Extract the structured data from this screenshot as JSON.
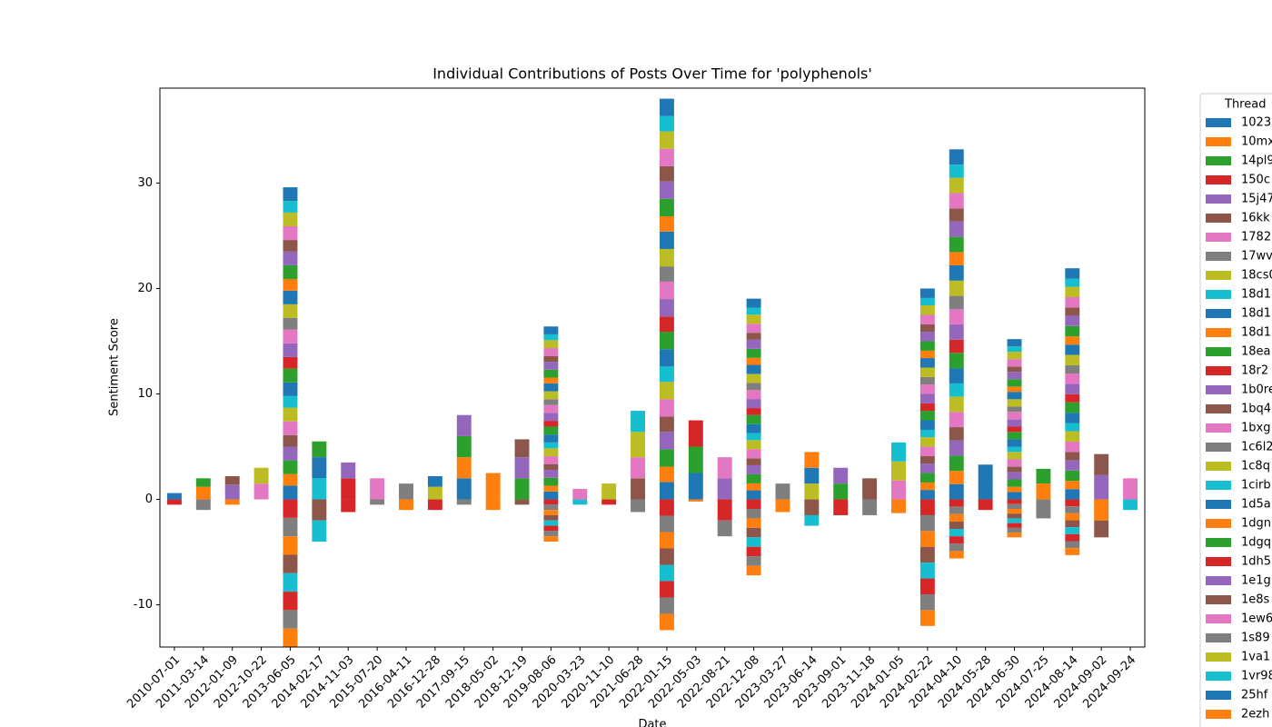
{
  "chart_data": {
    "type": "bar",
    "stacked": true,
    "title": "Individual Contributions of Posts Over Time for 'polyphenols'",
    "xlabel": "Date",
    "ylabel": "Sentiment Score",
    "legend_title": "Thread",
    "ylim": [
      -14,
      39
    ],
    "yticks": [
      -10,
      0,
      10,
      20,
      30
    ],
    "categories": [
      "2010-07-01",
      "2011-03-14",
      "2012-01-09",
      "2012-10-22",
      "2013-06-05",
      "2014-02-17",
      "2014-11-03",
      "2015-07-20",
      "2016-04-11",
      "2016-12-28",
      "2017-09-15",
      "2018-05-02",
      "2018-12-19",
      "2019-08-06",
      "2020-03-23",
      "2020-11-10",
      "2021-06-28",
      "2022-01-15",
      "2022-05-03",
      "2022-08-21",
      "2022-12-08",
      "2023-03-27",
      "2023-06-14",
      "2023-09-01",
      "2023-11-18",
      "2024-01-05",
      "2024-02-22",
      "2024-04-10",
      "2024-05-28",
      "2024-06-30",
      "2024-07-25",
      "2024-08-14",
      "2024-09-02",
      "2024-09-24"
    ],
    "series": [
      {
        "name": "1023",
        "color": "#1f77b4",
        "values": [
          0.6,
          0,
          0,
          0,
          1.3,
          0,
          0,
          0,
          0,
          0,
          2,
          0,
          0,
          0.75,
          0,
          0,
          0,
          1.65,
          0,
          0,
          0.86,
          0,
          0,
          0,
          0,
          0,
          0.9,
          1.45,
          1.6,
          0.7,
          0,
          0.98,
          0,
          0
        ]
      },
      {
        "name": "10mx",
        "color": "#ff7f0e",
        "values": [
          0,
          1.2,
          0,
          0,
          1.1,
          0,
          0,
          0,
          0,
          0,
          2,
          0,
          0,
          0.55,
          0,
          0,
          0,
          1.45,
          0,
          0,
          0.66,
          0,
          0,
          0,
          0,
          0,
          0.7,
          1.25,
          0,
          0.5,
          1.5,
          0.78,
          0,
          0
        ]
      },
      {
        "name": "14pl9",
        "color": "#2ca02c",
        "values": [
          0,
          0.8,
          0,
          0,
          1.3,
          0,
          0,
          0,
          0,
          0,
          2,
          0,
          0,
          0.75,
          0,
          0,
          0,
          1.65,
          0,
          0,
          0.86,
          0,
          0,
          0,
          0,
          0,
          0.9,
          1.45,
          0,
          0.7,
          1.4,
          0.98,
          0,
          0
        ]
      },
      {
        "name": "150c",
        "color": "#d62728",
        "values": [
          -0.5,
          0,
          0,
          0,
          -1.75,
          0,
          0,
          0,
          0,
          -1,
          0,
          0,
          0,
          -0.5,
          0,
          0,
          0,
          -1.55,
          0,
          -2,
          -0.9,
          0,
          0,
          0,
          0,
          0,
          -1.5,
          -0.7,
          -1,
          -0.45,
          0,
          -0.66,
          0,
          0
        ]
      },
      {
        "name": "15j47",
        "color": "#9467bd",
        "values": [
          0,
          0,
          1.4,
          0,
          1.3,
          0,
          0,
          0,
          0,
          0,
          2,
          0,
          0,
          0.75,
          0,
          0,
          0,
          1.65,
          0,
          0,
          0.86,
          0,
          0,
          0,
          0,
          0,
          0.9,
          1.45,
          0,
          0.7,
          0,
          0.98,
          2.3,
          0
        ]
      },
      {
        "name": "16kk",
        "color": "#8c564b",
        "values": [
          0,
          0,
          0.8,
          0,
          1.1,
          0,
          0,
          0,
          0,
          0,
          0,
          0,
          0,
          0.55,
          0,
          0,
          2,
          1.45,
          0,
          0,
          0.66,
          0,
          0,
          0,
          0,
          0,
          0.7,
          1.25,
          0,
          0.5,
          0,
          0.78,
          2,
          0
        ]
      },
      {
        "name": "1782",
        "color": "#e377c2",
        "values": [
          0,
          0,
          0,
          1.5,
          1.3,
          0,
          0,
          0,
          0,
          0,
          0,
          0,
          0,
          0.75,
          0,
          0,
          2,
          1.65,
          0,
          0,
          0.86,
          0,
          0,
          0,
          0,
          0,
          0.9,
          1.45,
          0,
          0.7,
          0,
          0.98,
          0,
          2
        ]
      },
      {
        "name": "17wv",
        "color": "#7f7f7f",
        "values": [
          0,
          -1,
          0,
          0,
          -1.75,
          0,
          0,
          0,
          0,
          0,
          -0.5,
          0,
          0,
          -0.5,
          0,
          0,
          0,
          -1.55,
          0,
          -1.5,
          -0.9,
          0,
          0,
          0,
          0,
          0,
          -1.5,
          -0.7,
          0,
          -0.45,
          -1.8,
          -0.66,
          0,
          0
        ]
      },
      {
        "name": "18cs0",
        "color": "#bcbd22",
        "values": [
          0,
          0,
          0,
          1.5,
          1.3,
          0,
          0,
          0,
          0,
          0,
          0,
          0,
          0,
          0.75,
          0,
          0,
          2.4,
          1.65,
          0,
          0,
          0.86,
          0,
          0,
          0,
          0,
          0,
          0.9,
          1.45,
          0,
          0.7,
          0,
          0.98,
          0,
          0
        ]
      },
      {
        "name": "18d1",
        "color": "#17becf",
        "values": [
          0,
          0,
          0,
          0,
          1.1,
          2,
          0,
          0,
          0,
          0,
          0,
          0,
          0,
          0.55,
          0,
          0,
          2,
          1.45,
          0,
          0,
          0.66,
          0,
          0,
          0,
          0,
          0,
          0.7,
          1.25,
          0,
          0.5,
          0,
          0.78,
          0,
          0
        ]
      },
      {
        "name": "18d1",
        "color": "#1f77b4",
        "values": [
          0,
          0,
          0,
          0,
          1.3,
          2,
          0,
          0,
          0,
          0,
          0,
          0,
          0,
          0.75,
          0,
          0,
          0,
          1.65,
          2.5,
          0,
          0.86,
          0,
          0,
          0,
          0,
          0,
          0.9,
          1.45,
          0,
          0.7,
          0,
          0.98,
          0,
          0
        ]
      },
      {
        "name": "18d1",
        "color": "#ff7f0e",
        "values": [
          0,
          0,
          -0.5,
          0,
          -1.75,
          0,
          0,
          0,
          0,
          0,
          0,
          -1,
          0,
          -0.5,
          0,
          0,
          0,
          -1.55,
          0,
          0,
          -0.9,
          -1.2,
          0,
          0,
          0,
          0,
          -1.5,
          -0.7,
          0,
          -0.45,
          0,
          -0.66,
          -2,
          0
        ]
      },
      {
        "name": "18ea",
        "color": "#2ca02c",
        "values": [
          0,
          0,
          0,
          0,
          1.3,
          1.5,
          0,
          0,
          0,
          0,
          0,
          0,
          0,
          0.75,
          0,
          0,
          0,
          1.65,
          2.5,
          0,
          0.86,
          0,
          0,
          0,
          0,
          0,
          0.9,
          1.45,
          0,
          0.7,
          0,
          0.98,
          0,
          0
        ]
      },
      {
        "name": "18r2",
        "color": "#d62728",
        "values": [
          0,
          0,
          0,
          0,
          1.1,
          0,
          2,
          0,
          0,
          0,
          0,
          0,
          0,
          0.55,
          0,
          0,
          0,
          1.45,
          2.5,
          0,
          0.66,
          0,
          0,
          0,
          0,
          0,
          0.7,
          1.25,
          0,
          0.5,
          0,
          0.78,
          0,
          0
        ]
      },
      {
        "name": "1b0re",
        "color": "#9467bd",
        "values": [
          0,
          0,
          0,
          0,
          1.3,
          0,
          1.5,
          0,
          0,
          0,
          0,
          0,
          0,
          0.75,
          0,
          0,
          0,
          1.65,
          0,
          2,
          0.86,
          0,
          0,
          0,
          0,
          0,
          0.9,
          1.45,
          0,
          0.7,
          0,
          0.98,
          0,
          0
        ]
      },
      {
        "name": "1bq4",
        "color": "#8c564b",
        "values": [
          0,
          0,
          0,
          0,
          -1.75,
          -2,
          0,
          0,
          0,
          0,
          0,
          0,
          -0.5,
          -0.5,
          0,
          0,
          0,
          -1.55,
          0,
          0,
          -0.9,
          0,
          -1.5,
          0,
          0,
          0,
          -1.5,
          -0.7,
          0,
          -0.45,
          0,
          -0.66,
          -1.6,
          0
        ]
      },
      {
        "name": "1bxg",
        "color": "#e377c2",
        "values": [
          0,
          0,
          0,
          0,
          1.3,
          0,
          0,
          2,
          0,
          0,
          0,
          0,
          0,
          0.75,
          0,
          0,
          0,
          1.65,
          0,
          2,
          0.86,
          0,
          0,
          0,
          0,
          0,
          0.9,
          1.45,
          0,
          0.7,
          0,
          0.98,
          0,
          0
        ]
      },
      {
        "name": "1c6l2",
        "color": "#7f7f7f",
        "values": [
          0,
          0,
          0,
          0,
          1.1,
          0,
          0,
          0,
          1.5,
          0,
          0,
          0,
          0,
          0.55,
          0,
          0,
          0,
          1.45,
          0,
          0,
          0.66,
          1.5,
          0,
          0,
          0,
          0,
          0.7,
          1.25,
          0,
          0.5,
          0,
          0.78,
          0,
          0
        ]
      },
      {
        "name": "1c8q",
        "color": "#bcbd22",
        "values": [
          0,
          0,
          0,
          0,
          1.3,
          0,
          0,
          0,
          0,
          1.2,
          0,
          0,
          0,
          0.75,
          0,
          0,
          0,
          1.65,
          0,
          0,
          0.86,
          0,
          1.5,
          0,
          0,
          0,
          0.9,
          1.45,
          0,
          0.7,
          0,
          0.98,
          0,
          0
        ]
      },
      {
        "name": "1cirb",
        "color": "#17becf",
        "values": [
          0,
          0,
          0,
          0,
          -1.75,
          -2,
          0,
          0,
          0,
          0,
          0,
          0,
          0,
          -0.5,
          -0.5,
          0,
          0,
          -1.55,
          0,
          0,
          -0.9,
          0,
          -1,
          0,
          0,
          0,
          -1.5,
          -0.7,
          0,
          -0.45,
          0,
          -0.66,
          0,
          -1
        ]
      },
      {
        "name": "1d5a",
        "color": "#1f77b4",
        "values": [
          0,
          0,
          0,
          0,
          1.3,
          0,
          0,
          0,
          0,
          1,
          0,
          0,
          0,
          0.75,
          0,
          0,
          0,
          1.65,
          0,
          0,
          0.86,
          0,
          1.5,
          0,
          0,
          0,
          0.9,
          1.45,
          0,
          0.7,
          0,
          0.98,
          0,
          0
        ]
      },
      {
        "name": "1dgn",
        "color": "#ff7f0e",
        "values": [
          0,
          0,
          0,
          0,
          1.1,
          0,
          0,
          0,
          0,
          0,
          0,
          2.5,
          0,
          0.55,
          0,
          0,
          0,
          1.45,
          0,
          0,
          0.66,
          0,
          1.5,
          0,
          0,
          0,
          0.7,
          1.25,
          0,
          0.5,
          0,
          0.78,
          0,
          0
        ]
      },
      {
        "name": "1dgq",
        "color": "#2ca02c",
        "values": [
          0,
          0,
          0,
          0,
          1.3,
          0,
          0,
          0,
          0,
          0,
          0,
          0,
          2,
          0.75,
          0,
          0,
          0,
          1.65,
          0,
          0,
          0.86,
          0,
          0,
          1.5,
          0,
          0,
          0.9,
          1.45,
          0,
          0.7,
          0,
          0.98,
          0,
          0
        ]
      },
      {
        "name": "1dh5",
        "color": "#d62728",
        "values": [
          0,
          0,
          0,
          0,
          -1.75,
          0,
          -1.2,
          0,
          0,
          0,
          0,
          0,
          0,
          -0.5,
          0,
          -0.5,
          0,
          -1.55,
          0,
          0,
          -0.9,
          0,
          0,
          -1.5,
          0,
          0,
          -1.5,
          -0.7,
          0,
          -0.45,
          0,
          -0.66,
          0,
          0
        ]
      },
      {
        "name": "1e1g",
        "color": "#9467bd",
        "values": [
          0,
          0,
          0,
          0,
          1.3,
          0,
          0,
          0,
          0,
          0,
          0,
          0,
          2,
          0.75,
          0,
          0,
          0,
          1.65,
          0,
          0,
          0.86,
          0,
          0,
          1.5,
          0,
          0,
          0.9,
          1.45,
          0,
          0.7,
          0,
          0.98,
          0,
          0
        ]
      },
      {
        "name": "1e8s",
        "color": "#8c564b",
        "values": [
          0,
          0,
          0,
          0,
          1.1,
          0,
          0,
          0,
          0,
          0,
          0,
          0,
          1.7,
          0.55,
          0,
          0,
          0,
          1.45,
          0,
          0,
          0.66,
          0,
          0,
          0,
          2,
          0,
          0.7,
          1.25,
          0,
          0.5,
          0,
          0.78,
          0,
          0
        ]
      },
      {
        "name": "1ew6",
        "color": "#e377c2",
        "values": [
          0,
          0,
          0,
          0,
          1.3,
          0,
          0,
          0,
          0,
          0,
          0,
          0,
          0,
          0.75,
          1,
          0,
          0,
          1.65,
          0,
          0,
          0.86,
          0,
          0,
          0,
          0,
          1.8,
          0.9,
          1.45,
          0,
          0.7,
          0,
          0.98,
          0,
          0
        ]
      },
      {
        "name": "1s89",
        "color": "#7f7f7f",
        "values": [
          0,
          0,
          0,
          0,
          -1.75,
          0,
          0,
          -0.5,
          0,
          0,
          0,
          0,
          0,
          -0.5,
          0,
          0,
          -1.2,
          -1.55,
          0,
          0,
          -0.9,
          0,
          0,
          0,
          -1.5,
          0,
          -1.5,
          -0.7,
          0,
          -0.45,
          0,
          -0.66,
          0,
          0
        ]
      },
      {
        "name": "1va1",
        "color": "#bcbd22",
        "values": [
          0,
          0,
          0,
          0,
          1.3,
          0,
          0,
          0,
          0,
          0,
          0,
          0,
          0,
          0.75,
          0,
          1.5,
          0,
          1.65,
          0,
          0,
          0.86,
          0,
          0,
          0,
          0,
          1.8,
          0.9,
          1.45,
          0,
          0.7,
          0,
          0.98,
          0,
          0
        ]
      },
      {
        "name": "1vr98",
        "color": "#17becf",
        "values": [
          0,
          0,
          0,
          0,
          1.1,
          0,
          0,
          0,
          0,
          0,
          0,
          0,
          0,
          0.55,
          0,
          0,
          0,
          1.45,
          0,
          0,
          0.66,
          0,
          0,
          0,
          0,
          1.8,
          0.7,
          1.25,
          0,
          0.5,
          0,
          0.78,
          0,
          0
        ]
      },
      {
        "name": "25hf",
        "color": "#1f77b4",
        "values": [
          0,
          0,
          0,
          0,
          1.3,
          0,
          0,
          0,
          0,
          0,
          0,
          0,
          0,
          0.75,
          0,
          0,
          0,
          1.65,
          0,
          0,
          0.86,
          0,
          0,
          0,
          0,
          0,
          0.9,
          1.45,
          1.7,
          0.7,
          0,
          0.98,
          0,
          0
        ]
      },
      {
        "name": "2ezh",
        "color": "#ff7f0e",
        "values": [
          0,
          0,
          0,
          0,
          -1.75,
          0,
          0,
          0,
          -1,
          0,
          0,
          0,
          0,
          -0.5,
          0,
          0,
          0,
          -1.55,
          -0.2,
          0,
          -0.9,
          0,
          0,
          0,
          0,
          -1.3,
          -1.5,
          -0.7,
          0,
          -0.45,
          0,
          -0.66,
          0,
          0
        ]
      }
    ]
  }
}
